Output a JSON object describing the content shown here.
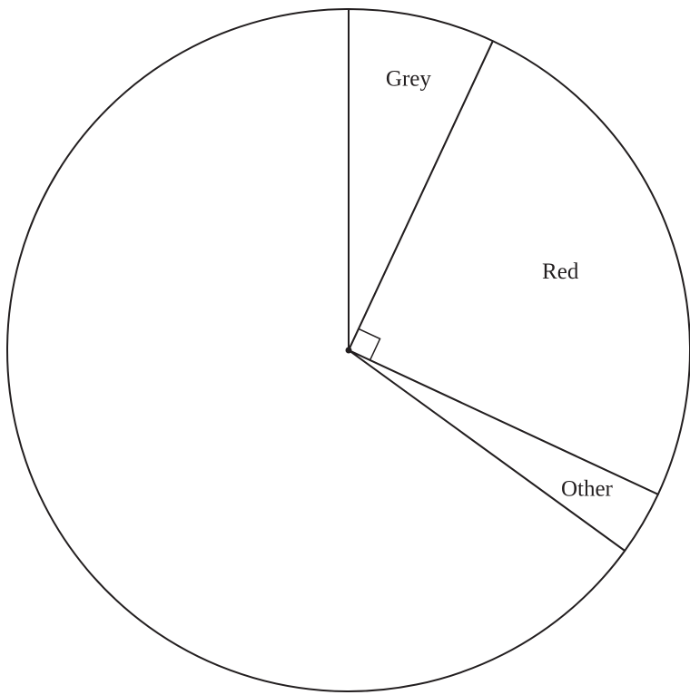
{
  "chart_data": {
    "type": "pie",
    "categories": [
      "Grey",
      "Red",
      "Other",
      null
    ],
    "values": [
      25,
      90,
      11,
      234
    ]
  }
}
